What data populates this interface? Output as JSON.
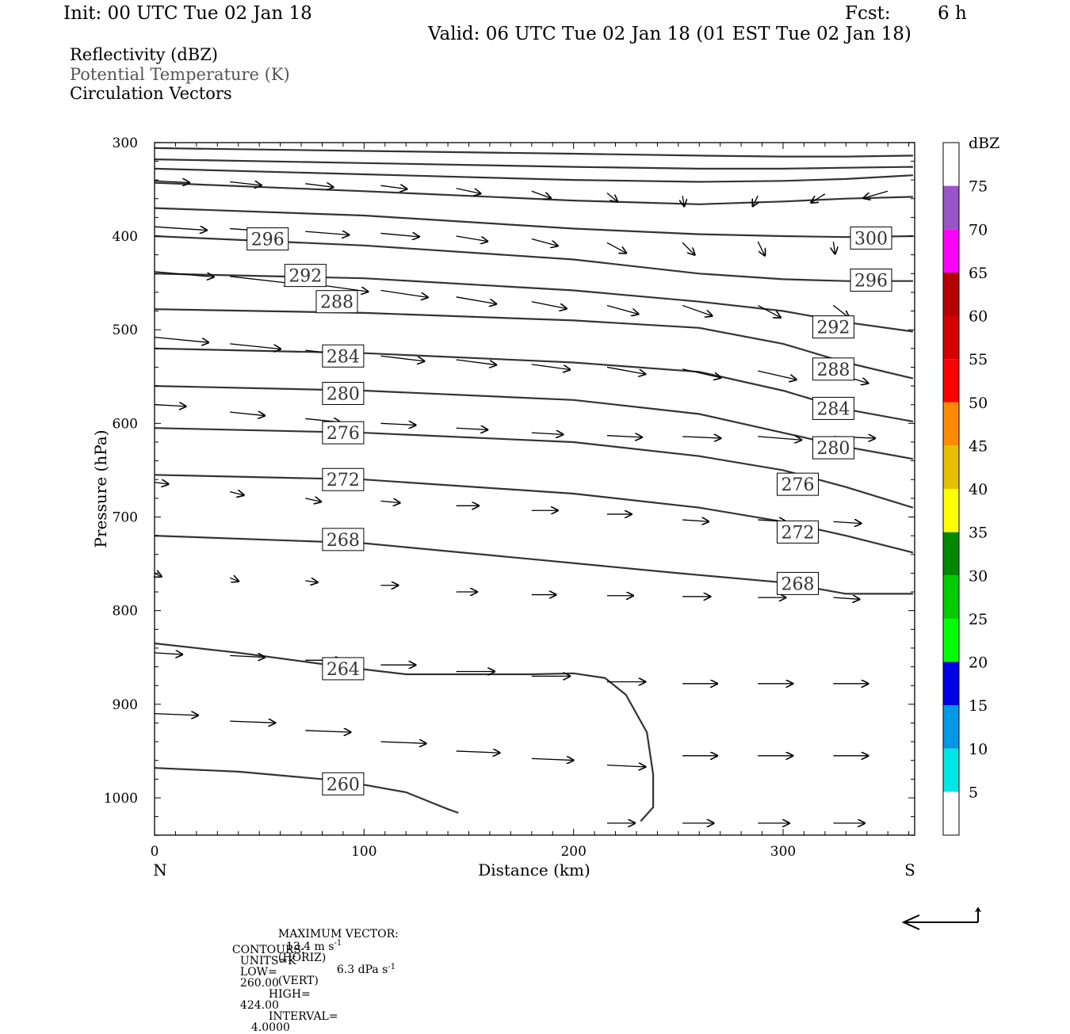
{
  "header": {
    "init": "Init: 00 UTC Tue 02 Jan 18",
    "fcst_label": "Fcst:",
    "fcst_value": "6 h",
    "valid": "Valid: 06 UTC Tue 02 Jan 18 (01 EST Tue 02 Jan 18)",
    "field1": "Reflectivity (dBZ)",
    "field2": "Potential Temperature (K)",
    "field3": "Circulation Vectors"
  },
  "colors": {
    "contour": "#333333",
    "field2_text": "#555555",
    "colorbar": [
      "#00e6e6",
      "#0099e6",
      "#0000e6",
      "#00ff00",
      "#00cc00",
      "#008800",
      "#ffff00",
      "#e6c000",
      "#ff8c00",
      "#ff0000",
      "#d40000",
      "#b40000",
      "#ff00ff",
      "#9955c8"
    ]
  },
  "chart_data": {
    "type": "cross-section",
    "xlabel": "Distance (km)",
    "ylabel": "Pressure (hPa)",
    "xlim": [
      0,
      362
    ],
    "ylim": [
      1040,
      300
    ],
    "x_ticks": [
      "0",
      "100",
      "200",
      "300"
    ],
    "y_ticks": [
      "300",
      "400",
      "500",
      "600",
      "700",
      "800",
      "900",
      "1000"
    ],
    "x_end_left": "N",
    "x_end_right": "S",
    "contour_levels_K": [
      {
        "level": "260",
        "points": [
          [
            0,
            968
          ],
          [
            40,
            972
          ],
          [
            90,
            982
          ],
          [
            120,
            994
          ],
          [
            140,
            1012
          ],
          [
            145,
            1016
          ]
        ]
      },
      {
        "level": "264",
        "points": [
          [
            0,
            835
          ],
          [
            40,
            845
          ],
          [
            90,
            860
          ],
          [
            120,
            868
          ],
          [
            180,
            868
          ],
          [
            200,
            867
          ],
          [
            215,
            872
          ],
          [
            225,
            890
          ],
          [
            235,
            930
          ],
          [
            238,
            975
          ],
          [
            238,
            1010
          ],
          [
            232,
            1025
          ]
        ]
      },
      {
        "level": "268",
        "points": [
          [
            0,
            720
          ],
          [
            100,
            728
          ],
          [
            180,
            745
          ],
          [
            250,
            760
          ],
          [
            300,
            770
          ],
          [
            330,
            782
          ],
          [
            362,
            782
          ]
        ]
      },
      {
        "level": "272",
        "points": [
          [
            0,
            655
          ],
          [
            100,
            660
          ],
          [
            200,
            675
          ],
          [
            260,
            690
          ],
          [
            300,
            705
          ],
          [
            330,
            720
          ],
          [
            362,
            738
          ]
        ]
      },
      {
        "level": "276",
        "points": [
          [
            0,
            605
          ],
          [
            100,
            610
          ],
          [
            200,
            620
          ],
          [
            260,
            635
          ],
          [
            300,
            650
          ],
          [
            330,
            668
          ],
          [
            362,
            690
          ]
        ]
      },
      {
        "level": "280",
        "points": [
          [
            0,
            560
          ],
          [
            100,
            565
          ],
          [
            200,
            575
          ],
          [
            260,
            590
          ],
          [
            300,
            610
          ],
          [
            330,
            625
          ],
          [
            362,
            638
          ]
        ]
      },
      {
        "level": "284",
        "points": [
          [
            0,
            520
          ],
          [
            100,
            525
          ],
          [
            200,
            535
          ],
          [
            260,
            545
          ],
          [
            300,
            565
          ],
          [
            330,
            585
          ],
          [
            362,
            598
          ]
        ]
      },
      {
        "level": "288",
        "points": [
          [
            0,
            478
          ],
          [
            100,
            482
          ],
          [
            200,
            490
          ],
          [
            260,
            498
          ],
          [
            300,
            515
          ],
          [
            330,
            535
          ],
          [
            362,
            552
          ]
        ]
      },
      {
        "level": "292",
        "points": [
          [
            0,
            440
          ],
          [
            100,
            445
          ],
          [
            200,
            458
          ],
          [
            260,
            470
          ],
          [
            300,
            480
          ],
          [
            330,
            492
          ],
          [
            362,
            502
          ]
        ]
      },
      {
        "level": "296",
        "points": [
          [
            0,
            400
          ],
          [
            100,
            410
          ],
          [
            200,
            425
          ],
          [
            260,
            440
          ],
          [
            300,
            446
          ],
          [
            330,
            448
          ],
          [
            362,
            448
          ]
        ]
      },
      {
        "level": "300",
        "points": [
          [
            0,
            370
          ],
          [
            100,
            378
          ],
          [
            200,
            392
          ],
          [
            260,
            398
          ],
          [
            300,
            400
          ],
          [
            330,
            401
          ],
          [
            362,
            400
          ]
        ]
      },
      {
        "level": "",
        "points": [
          [
            0,
            343
          ],
          [
            100,
            352
          ],
          [
            200,
            362
          ],
          [
            260,
            366
          ],
          [
            300,
            363
          ],
          [
            330,
            360
          ],
          [
            362,
            358
          ]
        ]
      },
      {
        "level": "",
        "points": [
          [
            0,
            328
          ],
          [
            100,
            334
          ],
          [
            200,
            340
          ],
          [
            260,
            342
          ],
          [
            300,
            341
          ],
          [
            330,
            339
          ],
          [
            362,
            335
          ]
        ]
      },
      {
        "level": "",
        "points": [
          [
            0,
            318
          ],
          [
            100,
            322
          ],
          [
            200,
            326
          ],
          [
            260,
            328
          ],
          [
            300,
            328
          ],
          [
            330,
            327
          ],
          [
            362,
            326
          ]
        ]
      },
      {
        "level": "",
        "points": [
          [
            0,
            306
          ],
          [
            100,
            309
          ],
          [
            200,
            312
          ],
          [
            260,
            314
          ],
          [
            300,
            315
          ],
          [
            330,
            315
          ],
          [
            362,
            314
          ]
        ]
      }
    ],
    "contour_labels": [
      {
        "text": "296",
        "x": 54,
        "p": 403
      },
      {
        "text": "292",
        "x": 72,
        "p": 442
      },
      {
        "text": "288",
        "x": 87,
        "p": 470
      },
      {
        "text": "284",
        "x": 90,
        "p": 528
      },
      {
        "text": "280",
        "x": 90,
        "p": 568
      },
      {
        "text": "276",
        "x": 90,
        "p": 610
      },
      {
        "text": "272",
        "x": 90,
        "p": 660
      },
      {
        "text": "268",
        "x": 90,
        "p": 724
      },
      {
        "text": "264",
        "x": 90,
        "p": 862
      },
      {
        "text": "260",
        "x": 90,
        "p": 985
      },
      {
        "text": "300",
        "x": 342,
        "p": 402
      },
      {
        "text": "296",
        "x": 342,
        "p": 447
      },
      {
        "text": "292",
        "x": 324,
        "p": 497
      },
      {
        "text": "288",
        "x": 324,
        "p": 542
      },
      {
        "text": "284",
        "x": 324,
        "p": 584
      },
      {
        "text": "280",
        "x": 324,
        "p": 626
      },
      {
        "text": "276",
        "x": 307,
        "p": 665
      },
      {
        "text": "272",
        "x": 307,
        "p": 716
      },
      {
        "text": "268",
        "x": 307,
        "p": 771
      }
    ],
    "vectors": [
      {
        "x": 0,
        "p": 341,
        "u": 20,
        "w": -1
      },
      {
        "x": 36,
        "p": 342,
        "u": 18,
        "w": -2
      },
      {
        "x": 72,
        "p": 344,
        "u": 16,
        "w": -2
      },
      {
        "x": 108,
        "p": 346,
        "u": 15,
        "w": -2
      },
      {
        "x": 144,
        "p": 349,
        "u": 14,
        "w": -3
      },
      {
        "x": 180,
        "p": 352,
        "u": 11,
        "w": -4
      },
      {
        "x": 216,
        "p": 354,
        "u": 6,
        "w": -5
      },
      {
        "x": 252,
        "p": 357,
        "u": 1,
        "w": -6
      },
      {
        "x": 288,
        "p": 357,
        "u": -3,
        "w": -6
      },
      {
        "x": 320,
        "p": 355,
        "u": -8,
        "w": -5
      },
      {
        "x": 350,
        "p": 352,
        "u": -14,
        "w": -4
      },
      {
        "x": 0,
        "p": 390,
        "u": 30,
        "w": -2
      },
      {
        "x": 36,
        "p": 392,
        "u": 28,
        "w": -2
      },
      {
        "x": 72,
        "p": 395,
        "u": 25,
        "w": -2
      },
      {
        "x": 108,
        "p": 397,
        "u": 22,
        "w": -2
      },
      {
        "x": 144,
        "p": 400,
        "u": 18,
        "w": -3
      },
      {
        "x": 180,
        "p": 403,
        "u": 15,
        "w": -4
      },
      {
        "x": 216,
        "p": 407,
        "u": 11,
        "w": -6
      },
      {
        "x": 252,
        "p": 407,
        "u": 7,
        "w": -7
      },
      {
        "x": 288,
        "p": 406,
        "u": 4,
        "w": -8
      },
      {
        "x": 324,
        "p": 406,
        "u": 1,
        "w": -7
      },
      {
        "x": 0,
        "p": 438,
        "u": 34,
        "w": -3
      },
      {
        "x": 36,
        "p": 443,
        "u": 35,
        "w": -4
      },
      {
        "x": 72,
        "p": 450,
        "u": 36,
        "w": -5
      },
      {
        "x": 108,
        "p": 458,
        "u": 27,
        "w": -4
      },
      {
        "x": 144,
        "p": 465,
        "u": 23,
        "w": -4
      },
      {
        "x": 180,
        "p": 470,
        "u": 20,
        "w": -4
      },
      {
        "x": 216,
        "p": 474,
        "u": 18,
        "w": -5
      },
      {
        "x": 252,
        "p": 474,
        "u": 17,
        "w": -6
      },
      {
        "x": 288,
        "p": 474,
        "u": 13,
        "w": -7
      },
      {
        "x": 324,
        "p": 474,
        "u": 9,
        "w": -7
      },
      {
        "x": 0,
        "p": 508,
        "u": 31,
        "w": -3
      },
      {
        "x": 36,
        "p": 515,
        "u": 29,
        "w": -3
      },
      {
        "x": 72,
        "p": 522,
        "u": 27,
        "w": -3
      },
      {
        "x": 108,
        "p": 528,
        "u": 25,
        "w": -3
      },
      {
        "x": 144,
        "p": 532,
        "u": 23,
        "w": -3
      },
      {
        "x": 180,
        "p": 537,
        "u": 22,
        "w": -3
      },
      {
        "x": 216,
        "p": 540,
        "u": 22,
        "w": -4
      },
      {
        "x": 252,
        "p": 542,
        "u": 22,
        "w": -5
      },
      {
        "x": 288,
        "p": 544,
        "u": 22,
        "w": -5
      },
      {
        "x": 324,
        "p": 546,
        "u": 20,
        "w": -6
      },
      {
        "x": 0,
        "p": 580,
        "u": 18,
        "w": -1
      },
      {
        "x": 36,
        "p": 588,
        "u": 20,
        "w": -2
      },
      {
        "x": 72,
        "p": 595,
        "u": 20,
        "w": -2
      },
      {
        "x": 108,
        "p": 600,
        "u": 20,
        "w": -1
      },
      {
        "x": 144,
        "p": 605,
        "u": 18,
        "w": -1
      },
      {
        "x": 180,
        "p": 610,
        "u": 18,
        "w": -1
      },
      {
        "x": 216,
        "p": 613,
        "u": 20,
        "w": -1
      },
      {
        "x": 252,
        "p": 614,
        "u": 22,
        "w": -1
      },
      {
        "x": 288,
        "p": 614,
        "u": 25,
        "w": -2
      },
      {
        "x": 324,
        "p": 614,
        "u": 24,
        "w": -1
      },
      {
        "x": 0,
        "p": 663,
        "u": 8,
        "w": -1
      },
      {
        "x": 36,
        "p": 673,
        "u": 8,
        "w": -2
      },
      {
        "x": 72,
        "p": 680,
        "u": 9,
        "w": -2
      },
      {
        "x": 108,
        "p": 683,
        "u": 11,
        "w": -1
      },
      {
        "x": 144,
        "p": 688,
        "u": 13,
        "w": 0
      },
      {
        "x": 180,
        "p": 693,
        "u": 15,
        "w": 0
      },
      {
        "x": 216,
        "p": 697,
        "u": 14,
        "w": 0
      },
      {
        "x": 252,
        "p": 703,
        "u": 15,
        "w": -1
      },
      {
        "x": 288,
        "p": 703,
        "u": 16,
        "w": -1
      },
      {
        "x": 324,
        "p": 705,
        "u": 16,
        "w": -1
      },
      {
        "x": 0,
        "p": 760,
        "u": 4,
        "w": -2
      },
      {
        "x": 36,
        "p": 765,
        "u": 5,
        "w": -2
      },
      {
        "x": 72,
        "p": 768,
        "u": 7,
        "w": -1
      },
      {
        "x": 108,
        "p": 773,
        "u": 10,
        "w": 0
      },
      {
        "x": 144,
        "p": 780,
        "u": 12,
        "w": 0
      },
      {
        "x": 180,
        "p": 783,
        "u": 14,
        "w": 0
      },
      {
        "x": 216,
        "p": 784,
        "u": 15,
        "w": 0
      },
      {
        "x": 252,
        "p": 785,
        "u": 16,
        "w": 0
      },
      {
        "x": 288,
        "p": 786,
        "u": 16,
        "w": 0
      },
      {
        "x": 324,
        "p": 786,
        "u": 15,
        "w": -1
      },
      {
        "x": 0,
        "p": 845,
        "u": 16,
        "w": -1
      },
      {
        "x": 36,
        "p": 848,
        "u": 20,
        "w": -1
      },
      {
        "x": 72,
        "p": 853,
        "u": 21,
        "w": 0
      },
      {
        "x": 108,
        "p": 858,
        "u": 20,
        "w": 0
      },
      {
        "x": 144,
        "p": 865,
        "u": 22,
        "w": 0
      },
      {
        "x": 180,
        "p": 870,
        "u": 22,
        "w": 0
      },
      {
        "x": 216,
        "p": 876,
        "u": 22,
        "w": 0
      },
      {
        "x": 252,
        "p": 878,
        "u": 20,
        "w": 0
      },
      {
        "x": 288,
        "p": 878,
        "u": 20,
        "w": 0
      },
      {
        "x": 324,
        "p": 878,
        "u": 20,
        "w": 0
      },
      {
        "x": 0,
        "p": 910,
        "u": 25,
        "w": -1
      },
      {
        "x": 36,
        "p": 918,
        "u": 26,
        "w": -1
      },
      {
        "x": 72,
        "p": 928,
        "u": 26,
        "w": -1
      },
      {
        "x": 108,
        "p": 940,
        "u": 26,
        "w": -1
      },
      {
        "x": 144,
        "p": 950,
        "u": 25,
        "w": -1
      },
      {
        "x": 180,
        "p": 958,
        "u": 24,
        "w": -1
      },
      {
        "x": 216,
        "p": 965,
        "u": 22,
        "w": -1
      },
      {
        "x": 252,
        "p": 955,
        "u": 20,
        "w": 0
      },
      {
        "x": 288,
        "p": 955,
        "u": 20,
        "w": 0
      },
      {
        "x": 324,
        "p": 955,
        "u": 20,
        "w": 0
      },
      {
        "x": 216,
        "p": 1027,
        "u": 16,
        "w": 0
      },
      {
        "x": 252,
        "p": 1027,
        "u": 18,
        "w": 0
      },
      {
        "x": 288,
        "p": 1027,
        "u": 18,
        "w": 0
      },
      {
        "x": 324,
        "p": 1027,
        "u": 18,
        "w": 0
      }
    ],
    "colorbar": {
      "unit": "dBZ",
      "labels": [
        "5",
        "10",
        "15",
        "20",
        "25",
        "30",
        "35",
        "40",
        "45",
        "50",
        "55",
        "60",
        "65",
        "70",
        "75"
      ]
    }
  },
  "footer": {
    "max_vector_label": "MAXIMUM VECTOR:",
    "max_vector_value": "13.4 m s",
    "max_vector_exp": "-1",
    "max_vector_unit": "(HORIZ)",
    "vert_value": "6.3 dPa s",
    "vert_exp": "-1",
    "vert_unit": "(VERT)",
    "contours_label": "CONTOURS:",
    "units": "UNITS=K",
    "low_label": "LOW=",
    "low_value": "260.00",
    "high_label": "HIGH=",
    "high_value": "424.00",
    "interval_label": "INTERVAL=",
    "interval_value": "4.0000"
  }
}
